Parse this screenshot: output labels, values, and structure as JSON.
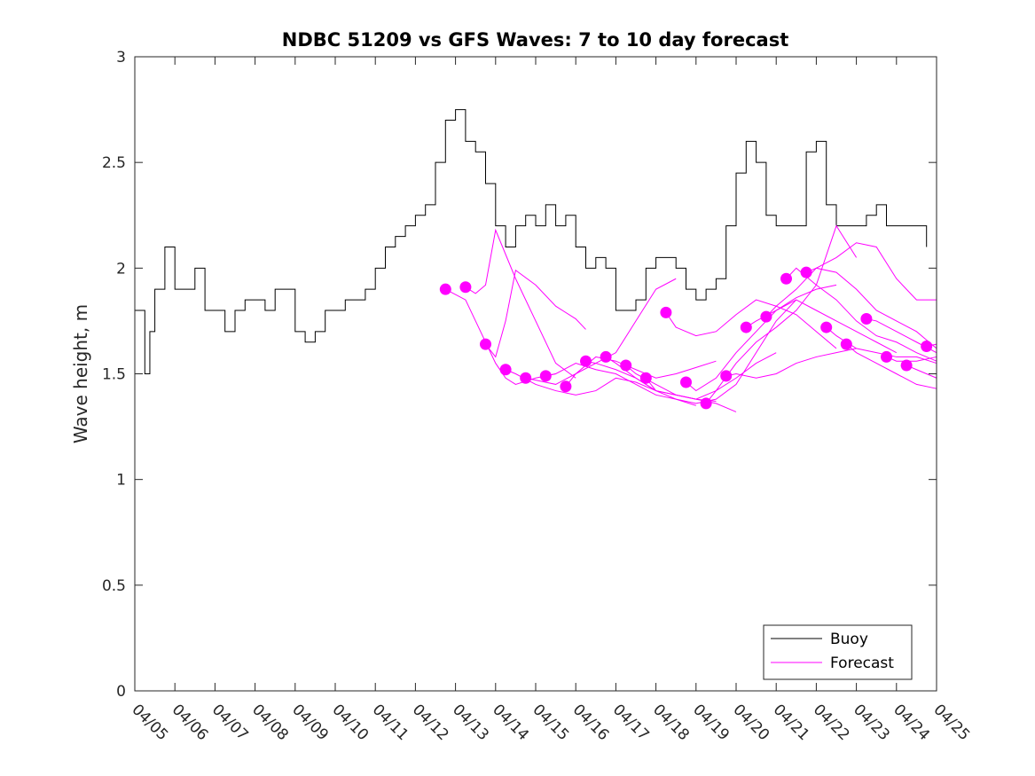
{
  "chart_data": {
    "type": "line",
    "title": "NDBC 51209 vs GFS Waves: 7 to 10 day forecast",
    "xlabel": "",
    "ylabel": "Wave height, m",
    "xlim": [
      "04/05",
      "04/25"
    ],
    "ylim": [
      0,
      3
    ],
    "grid": false,
    "legend_position": "bottom-right",
    "x_tick_labels": [
      "04/05",
      "04/06",
      "04/07",
      "04/08",
      "04/09",
      "04/10",
      "04/11",
      "04/12",
      "04/13",
      "04/14",
      "04/15",
      "04/16",
      "04/17",
      "04/18",
      "04/19",
      "04/20",
      "04/21",
      "04/22",
      "04/23",
      "04/24",
      "04/25"
    ],
    "y_ticks": [
      0,
      0.5,
      1,
      1.5,
      2,
      2.5,
      3
    ],
    "y_tick_labels": [
      "0",
      "0.5",
      "1",
      "1.5",
      "2",
      "2.5",
      "3"
    ],
    "colors": {
      "buoy": "#000000",
      "forecast": "#ff00ff"
    },
    "series": [
      {
        "name": "Buoy",
        "style": "line",
        "x": [
          "04/05 00:00",
          "04/05 06:00",
          "04/05 09:00",
          "04/05 12:00",
          "04/05 18:00",
          "04/06 00:00",
          "04/06 06:00",
          "04/06 12:00",
          "04/06 18:00",
          "04/07 00:00",
          "04/07 06:00",
          "04/07 12:00",
          "04/07 18:00",
          "04/08 00:00",
          "04/08 06:00",
          "04/08 12:00",
          "04/08 18:00",
          "04/09 00:00",
          "04/09 06:00",
          "04/09 12:00",
          "04/09 18:00",
          "04/10 00:00",
          "04/10 06:00",
          "04/10 12:00",
          "04/10 18:00",
          "04/11 00:00",
          "04/11 06:00",
          "04/11 12:00",
          "04/11 18:00",
          "04/12 00:00",
          "04/12 06:00",
          "04/12 12:00",
          "04/12 18:00",
          "04/13 00:00",
          "04/13 06:00",
          "04/13 12:00",
          "04/13 18:00",
          "04/14 00:00",
          "04/14 06:00",
          "04/14 12:00",
          "04/14 18:00",
          "04/15 00:00",
          "04/15 06:00",
          "04/15 12:00",
          "04/15 18:00",
          "04/16 00:00",
          "04/16 06:00",
          "04/16 12:00",
          "04/16 18:00",
          "04/17 00:00",
          "04/17 06:00",
          "04/17 12:00",
          "04/17 18:00",
          "04/18 00:00",
          "04/18 06:00",
          "04/18 12:00",
          "04/18 18:00",
          "04/19 00:00",
          "04/19 06:00",
          "04/19 12:00",
          "04/19 18:00",
          "04/20 00:00",
          "04/20 06:00",
          "04/20 12:00",
          "04/20 18:00",
          "04/21 00:00",
          "04/21 06:00",
          "04/21 12:00",
          "04/21 18:00",
          "04/22 00:00",
          "04/22 06:00",
          "04/22 12:00",
          "04/22 18:00",
          "04/23 00:00",
          "04/23 06:00",
          "04/23 12:00",
          "04/23 18:00",
          "04/24 00:00",
          "04/24 06:00",
          "04/24 12:00",
          "04/24 18:00"
        ],
        "y": [
          1.8,
          1.5,
          1.7,
          1.9,
          2.1,
          1.9,
          1.9,
          2.0,
          1.8,
          1.8,
          1.7,
          1.8,
          1.85,
          1.85,
          1.8,
          1.9,
          1.9,
          1.7,
          1.65,
          1.7,
          1.8,
          1.8,
          1.85,
          1.85,
          1.9,
          2.0,
          2.1,
          2.15,
          2.2,
          2.25,
          2.3,
          2.5,
          2.7,
          2.75,
          2.6,
          2.55,
          2.4,
          2.2,
          2.1,
          2.2,
          2.25,
          2.2,
          2.3,
          2.2,
          2.25,
          2.1,
          2.0,
          2.05,
          2.0,
          1.8,
          1.8,
          1.85,
          2.0,
          2.05,
          2.05,
          2.0,
          1.9,
          1.85,
          1.9,
          1.95,
          2.2,
          2.45,
          2.6,
          2.5,
          2.25,
          2.2,
          2.2,
          2.2,
          2.55,
          2.6,
          2.3,
          2.2,
          2.2,
          2.2,
          2.25,
          2.3,
          2.2,
          2.2,
          2.2,
          2.2,
          2.1
        ]
      },
      {
        "name": "Forecast",
        "style": "line",
        "x": [
          "04/12 18:00",
          "04/13 06:00",
          "04/13 12:00",
          "04/13 18:00",
          "04/14 00:00",
          "04/14 06:00",
          "04/14 12:00",
          "04/15 00:00",
          "04/15 12:00"
        ],
        "y": [
          1.9,
          1.85,
          1.75,
          1.65,
          1.55,
          1.48,
          1.45,
          1.48,
          1.5
        ]
      },
      {
        "name": "Forecast",
        "style": "line",
        "x": [
          "04/13 06:00",
          "04/13 12:00",
          "04/13 18:00",
          "04/14 00:00",
          "04/14 12:00",
          "04/15 00:00",
          "04/15 12:00",
          "04/16 00:00"
        ],
        "y": [
          1.91,
          1.88,
          1.92,
          2.18,
          1.95,
          1.75,
          1.55,
          1.48
        ]
      },
      {
        "name": "Forecast",
        "style": "line",
        "x": [
          "04/13 18:00",
          "04/14 00:00",
          "04/14 06:00",
          "04/14 12:00",
          "04/15 00:00",
          "04/15 12:00",
          "04/16 00:00",
          "04/16 06:00"
        ],
        "y": [
          1.64,
          1.58,
          1.75,
          1.99,
          1.92,
          1.82,
          1.76,
          1.71
        ]
      },
      {
        "name": "Forecast",
        "style": "line",
        "x": [
          "04/14 06:00",
          "04/14 12:00",
          "04/15 00:00",
          "04/15 12:00",
          "04/16 00:00",
          "04/16 12:00",
          "04/17 00:00",
          "04/17 12:00",
          "04/18 00:00"
        ],
        "y": [
          1.52,
          1.5,
          1.45,
          1.42,
          1.4,
          1.42,
          1.48,
          1.46,
          1.42
        ]
      },
      {
        "name": "Forecast",
        "style": "line",
        "x": [
          "04/14 18:00",
          "04/15 00:00",
          "04/15 12:00",
          "04/16 00:00",
          "04/16 12:00",
          "04/17 00:00",
          "04/17 12:00",
          "04/18 00:00",
          "04/18 12:00"
        ],
        "y": [
          1.48,
          1.47,
          1.45,
          1.5,
          1.55,
          1.6,
          1.75,
          1.9,
          1.95
        ]
      },
      {
        "name": "Forecast",
        "style": "line",
        "x": [
          "04/15 06:00",
          "04/15 12:00",
          "04/16 00:00",
          "04/16 12:00",
          "04/17 00:00",
          "04/17 12:00",
          "04/18 00:00",
          "04/18 12:00",
          "04/19 00:00"
        ],
        "y": [
          1.49,
          1.5,
          1.55,
          1.52,
          1.5,
          1.45,
          1.4,
          1.38,
          1.35
        ]
      },
      {
        "name": "Forecast",
        "style": "line",
        "x": [
          "04/15 18:00",
          "04/16 00:00",
          "04/16 12:00",
          "04/17 00:00",
          "04/17 12:00",
          "04/18 00:00",
          "04/18 12:00",
          "04/19 00:00",
          "04/19 12:00"
        ],
        "y": [
          1.44,
          1.5,
          1.58,
          1.56,
          1.52,
          1.48,
          1.5,
          1.53,
          1.56
        ]
      },
      {
        "name": "Forecast",
        "style": "line",
        "x": [
          "04/16 06:00",
          "04/16 12:00",
          "04/17 00:00",
          "04/17 12:00",
          "04/18 00:00",
          "04/18 12:00",
          "04/19 00:00",
          "04/19 12:00"
        ],
        "y": [
          1.56,
          1.55,
          1.52,
          1.48,
          1.42,
          1.4,
          1.38,
          1.37
        ]
      },
      {
        "name": "Forecast",
        "style": "line",
        "x": [
          "04/16 18:00",
          "04/17 00:00",
          "04/17 12:00",
          "04/18 00:00",
          "04/18 12:00",
          "04/19 00:00",
          "04/19 12:00",
          "04/20 00:00"
        ],
        "y": [
          1.58,
          1.55,
          1.48,
          1.42,
          1.4,
          1.38,
          1.36,
          1.32
        ]
      },
      {
        "name": "Forecast",
        "style": "line",
        "x": [
          "04/17 06:00",
          "04/17 12:00",
          "04/18 00:00",
          "04/18 12:00",
          "04/19 00:00",
          "04/19 12:00",
          "04/20 00:00",
          "04/20 12:00",
          "04/21 00:00"
        ],
        "y": [
          1.54,
          1.5,
          1.45,
          1.4,
          1.38,
          1.42,
          1.48,
          1.55,
          1.6
        ]
      },
      {
        "name": "Forecast",
        "style": "line",
        "x": [
          "04/17 18:00",
          "04/18 00:00",
          "04/18 12:00",
          "04/19 00:00",
          "04/19 12:00",
          "04/20 00:00",
          "04/20 12:00",
          "04/21 00:00",
          "04/21 12:00"
        ],
        "y": [
          1.48,
          1.42,
          1.38,
          1.36,
          1.38,
          1.45,
          1.6,
          1.75,
          1.85
        ]
      },
      {
        "name": "Forecast",
        "style": "line",
        "x": [
          "04/18 06:00",
          "04/18 12:00",
          "04/19 00:00",
          "04/19 12:00",
          "04/20 00:00",
          "04/20 12:00",
          "04/21 00:00",
          "04/21 12:00",
          "04/22 00:00",
          "04/22 12:00"
        ],
        "y": [
          1.79,
          1.72,
          1.68,
          1.7,
          1.78,
          1.85,
          1.82,
          1.78,
          1.7,
          1.62
        ]
      },
      {
        "name": "Forecast",
        "style": "line",
        "x": [
          "04/18 18:00",
          "04/19 00:00",
          "04/19 12:00",
          "04/20 00:00",
          "04/20 12:00",
          "04/21 00:00",
          "04/21 12:00",
          "04/22 00:00",
          "04/22 12:00"
        ],
        "y": [
          1.46,
          1.42,
          1.48,
          1.6,
          1.7,
          1.8,
          1.86,
          1.9,
          1.92
        ]
      },
      {
        "name": "Forecast",
        "style": "line",
        "x": [
          "04/19 06:00",
          "04/19 12:00",
          "04/20 00:00",
          "04/20 12:00",
          "04/21 00:00",
          "04/21 12:00",
          "04/22 00:00",
          "04/22 12:00",
          "04/23 00:00"
        ],
        "y": [
          1.36,
          1.42,
          1.55,
          1.65,
          1.72,
          1.8,
          1.92,
          2.2,
          2.05
        ]
      },
      {
        "name": "Forecast",
        "style": "line",
        "x": [
          "04/19 18:00",
          "04/20 00:00",
          "04/20 12:00",
          "04/21 00:00",
          "04/21 12:00",
          "04/22 00:00",
          "04/22 12:00",
          "04/23 00:00"
        ],
        "y": [
          1.49,
          1.5,
          1.48,
          1.5,
          1.55,
          1.58,
          1.6,
          1.62
        ]
      },
      {
        "name": "Forecast",
        "style": "line",
        "x": [
          "04/20 06:00",
          "04/20 12:00",
          "04/21 00:00",
          "04/21 12:00",
          "04/22 00:00",
          "04/22 12:00",
          "04/23 00:00",
          "04/23 12:00",
          "04/24 00:00"
        ],
        "y": [
          1.72,
          1.75,
          1.8,
          1.85,
          1.8,
          1.75,
          1.7,
          1.65,
          1.6
        ]
      },
      {
        "name": "Forecast",
        "style": "line",
        "x": [
          "04/20 18:00",
          "04/21 00:00",
          "04/21 12:00",
          "04/22 00:00",
          "04/22 12:00",
          "04/23 00:00",
          "04/23 12:00",
          "04/24 00:00",
          "04/24 12:00",
          "04/25 00:00"
        ],
        "y": [
          1.77,
          1.82,
          1.9,
          2.0,
          1.98,
          1.9,
          1.8,
          1.75,
          1.7,
          1.62
        ]
      },
      {
        "name": "Forecast",
        "style": "line",
        "x": [
          "04/21 06:00",
          "04/21 12:00",
          "04/22 00:00",
          "04/22 12:00",
          "04/23 00:00",
          "04/23 12:00",
          "04/24 00:00",
          "04/24 12:00",
          "04/25 00:00"
        ],
        "y": [
          1.95,
          2.0,
          1.92,
          1.85,
          1.75,
          1.68,
          1.65,
          1.6,
          1.56
        ]
      },
      {
        "name": "Forecast",
        "style": "line",
        "x": [
          "04/21 18:00",
          "04/22 00:00",
          "04/22 12:00",
          "04/23 00:00",
          "04/23 12:00",
          "04/24 00:00",
          "04/24 12:00",
          "04/25 00:00"
        ],
        "y": [
          1.98,
          2.0,
          2.05,
          2.12,
          2.1,
          1.95,
          1.85,
          1.85
        ]
      },
      {
        "name": "Forecast",
        "style": "line",
        "x": [
          "04/22 06:00",
          "04/22 12:00",
          "04/23 00:00",
          "04/23 12:00",
          "04/24 00:00",
          "04/24 12:00",
          "04/25 00:00"
        ],
        "y": [
          1.72,
          1.68,
          1.62,
          1.6,
          1.58,
          1.58,
          1.55
        ]
      },
      {
        "name": "Forecast",
        "style": "line",
        "x": [
          "04/22 18:00",
          "04/23 00:00",
          "04/23 12:00",
          "04/24 00:00",
          "04/24 12:00",
          "04/25 00:00"
        ],
        "y": [
          1.64,
          1.6,
          1.55,
          1.5,
          1.45,
          1.43
        ]
      },
      {
        "name": "Forecast",
        "style": "line",
        "x": [
          "04/23 06:00",
          "04/23 12:00",
          "04/24 00:00",
          "04/24 12:00",
          "04/25 00:00"
        ],
        "y": [
          1.76,
          1.75,
          1.7,
          1.65,
          1.6
        ]
      },
      {
        "name": "Forecast",
        "style": "line",
        "x": [
          "04/23 18:00",
          "04/24 00:00",
          "04/24 12:00",
          "04/25 00:00"
        ],
        "y": [
          1.58,
          1.56,
          1.56,
          1.58
        ]
      },
      {
        "name": "Forecast",
        "style": "line",
        "x": [
          "04/24 06:00",
          "04/24 12:00",
          "04/25 00:00"
        ],
        "y": [
          1.54,
          1.52,
          1.48
        ]
      },
      {
        "name": "Forecast",
        "style": "line",
        "x": [
          "04/24 18:00",
          "04/25 00:00"
        ],
        "y": [
          1.63,
          1.64
        ]
      },
      {
        "name": "Forecast",
        "style": "markers",
        "x": [
          "04/12 18:00",
          "04/13 06:00",
          "04/13 18:00",
          "04/14 06:00",
          "04/14 18:00",
          "04/15 06:00",
          "04/15 18:00",
          "04/16 06:00",
          "04/16 18:00",
          "04/17 06:00",
          "04/17 18:00",
          "04/18 06:00",
          "04/18 18:00",
          "04/19 06:00",
          "04/19 18:00",
          "04/20 06:00",
          "04/20 18:00",
          "04/21 06:00",
          "04/21 18:00",
          "04/22 06:00",
          "04/22 18:00",
          "04/23 06:00",
          "04/23 18:00",
          "04/24 06:00",
          "04/24 18:00"
        ],
        "y": [
          1.9,
          1.91,
          1.64,
          1.52,
          1.48,
          1.49,
          1.44,
          1.56,
          1.58,
          1.54,
          1.48,
          1.79,
          1.46,
          1.36,
          1.49,
          1.72,
          1.77,
          1.95,
          1.98,
          1.72,
          1.64,
          1.76,
          1.58,
          1.54,
          1.63
        ]
      }
    ],
    "legend": [
      "Buoy",
      "Forecast"
    ]
  }
}
